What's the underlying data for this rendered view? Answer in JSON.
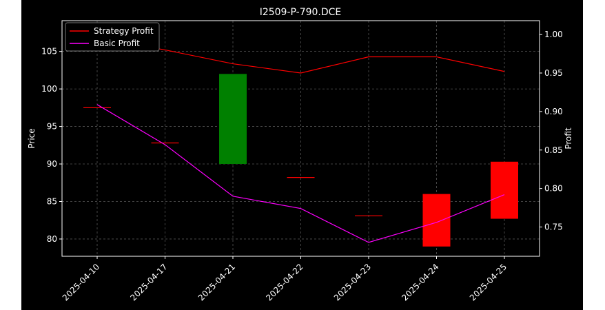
{
  "chart_data": {
    "type": "candlestick+line",
    "title": "I2509-P-790.DCE",
    "ylabel_left": "Price",
    "ylabel_right": "Profit",
    "xlabel": "",
    "categories": [
      "2025-04-10",
      "2025-04-17",
      "2025-04-21",
      "2025-04-22",
      "2025-04-23",
      "2025-04-24",
      "2025-04-25"
    ],
    "ylim_left": [
      77.7,
      109.1
    ],
    "ylim_right": [
      0.712,
      1.018
    ],
    "yticks_left": [
      80,
      85,
      90,
      95,
      100,
      105
    ],
    "yticks_right": [
      "0.75",
      "0.80",
      "0.85",
      "0.90",
      "0.95",
      "1.00"
    ],
    "grid": true,
    "legend_position": "top-left",
    "candles": [
      {
        "x": "2025-04-10",
        "open": 97.5,
        "close": 97.5
      },
      {
        "x": "2025-04-17",
        "open": 92.8,
        "close": 92.8
      },
      {
        "x": "2025-04-21",
        "open": 90.0,
        "close": 102.0
      },
      {
        "x": "2025-04-22",
        "open": 88.2,
        "close": 88.2
      },
      {
        "x": "2025-04-23",
        "open": 83.1,
        "close": 83.1
      },
      {
        "x": "2025-04-24",
        "open": 86.0,
        "close": 79.0
      },
      {
        "x": "2025-04-25",
        "open": 90.3,
        "close": 82.7
      }
    ],
    "series": [
      {
        "name": "Strategy Profit",
        "color": "#ff0000",
        "axis": "right",
        "values": [
          0.995,
          0.98,
          0.962,
          0.95,
          0.971,
          0.971,
          0.952
        ]
      },
      {
        "name": "Basic Profit",
        "color": "#ff00ff",
        "axis": "right",
        "values": [
          0.909,
          0.857,
          0.79,
          0.774,
          0.73,
          0.756,
          0.792
        ]
      }
    ],
    "colors": {
      "up": "#008000",
      "down": "#ff0000",
      "flat": "#ff0000",
      "background": "#000000",
      "text": "#ffffff",
      "grid": "#555555"
    }
  }
}
